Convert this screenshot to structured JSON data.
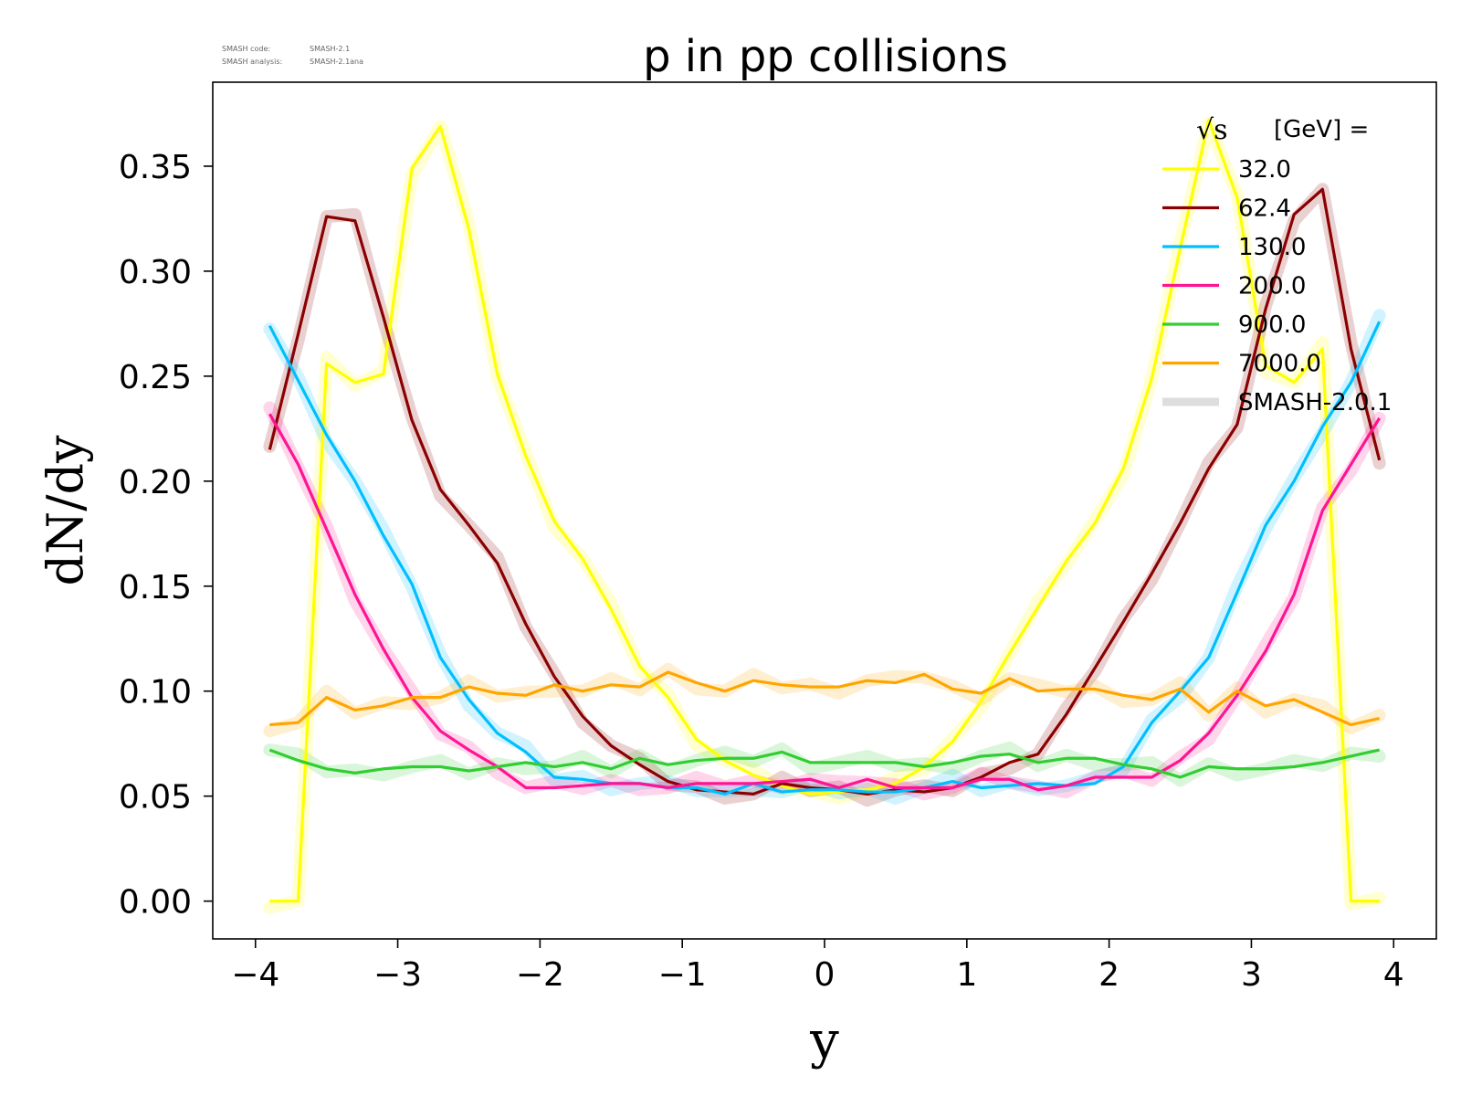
{
  "meta": {
    "code_label": "SMASH code:",
    "code_value": "SMASH-2.1",
    "analysis_label": "SMASH analysis:",
    "analysis_value": "SMASH-2.1ana"
  },
  "chart_data": {
    "type": "line",
    "title": "p in pp collisions",
    "xlabel": "y",
    "ylabel": "dN/dy",
    "xlim": [
      -4.3,
      4.3
    ],
    "ylim": [
      -0.018,
      0.39
    ],
    "xticks": [
      -4,
      -3,
      -2,
      -1,
      0,
      1,
      2,
      3,
      4
    ],
    "xtick_labels": [
      "−4",
      "−3",
      "−2",
      "−1",
      "0",
      "1",
      "2",
      "3",
      "4"
    ],
    "yticks": [
      0.0,
      0.05,
      0.1,
      0.15,
      0.2,
      0.25,
      0.3,
      0.35
    ],
    "ytick_labels": [
      "0.00",
      "0.05",
      "0.10",
      "0.15",
      "0.20",
      "0.25",
      "0.30",
      "0.35"
    ],
    "grid": false,
    "legend": {
      "placement": "top-right",
      "title_symbol": "√s",
      "title_text": "[GeV] =",
      "reference_label": "SMASH-2.0.1",
      "reference_color": "#dddddd"
    },
    "x": [
      -3.9,
      -3.7,
      -3.5,
      -3.3,
      -3.1,
      -2.9,
      -2.7,
      -2.5,
      -2.3,
      -2.1,
      -1.9,
      -1.7,
      -1.5,
      -1.3,
      -1.1,
      -0.9,
      -0.7,
      -0.5,
      -0.3,
      -0.1,
      0.1,
      0.3,
      0.5,
      0.7,
      0.9,
      1.1,
      1.3,
      1.5,
      1.7,
      1.9,
      2.1,
      2.3,
      2.5,
      2.7,
      2.9,
      3.1,
      3.3,
      3.5,
      3.7,
      3.9
    ],
    "series": [
      {
        "name": "32.0",
        "color": "#ffff00",
        "values": [
          0.0,
          0.0,
          0.256,
          0.247,
          0.251,
          0.349,
          0.369,
          0.32,
          0.251,
          0.212,
          0.181,
          0.163,
          0.139,
          0.112,
          0.097,
          0.077,
          0.067,
          0.06,
          0.055,
          0.051,
          0.052,
          0.053,
          0.056,
          0.064,
          0.076,
          0.095,
          0.118,
          0.14,
          0.162,
          0.18,
          0.206,
          0.249,
          0.311,
          0.372,
          0.335,
          0.255,
          0.247,
          0.263,
          0.0,
          0.0
        ]
      },
      {
        "name": "62.4",
        "color": "#8b0000",
        "values": [
          0.215,
          0.27,
          0.326,
          0.324,
          0.278,
          0.229,
          0.196,
          0.179,
          0.161,
          0.132,
          0.107,
          0.088,
          0.074,
          0.065,
          0.057,
          0.053,
          0.052,
          0.051,
          0.056,
          0.054,
          0.053,
          0.051,
          0.053,
          0.052,
          0.054,
          0.059,
          0.066,
          0.07,
          0.089,
          0.111,
          0.133,
          0.156,
          0.18,
          0.206,
          0.227,
          0.282,
          0.327,
          0.339,
          0.263,
          0.21
        ]
      },
      {
        "name": "130.0",
        "color": "#00bfff",
        "values": [
          0.274,
          0.248,
          0.222,
          0.2,
          0.174,
          0.151,
          0.116,
          0.096,
          0.08,
          0.071,
          0.059,
          0.058,
          0.056,
          0.056,
          0.054,
          0.054,
          0.051,
          0.056,
          0.052,
          0.053,
          0.053,
          0.052,
          0.052,
          0.054,
          0.057,
          0.054,
          0.055,
          0.056,
          0.055,
          0.056,
          0.064,
          0.085,
          0.1,
          0.116,
          0.147,
          0.179,
          0.2,
          0.226,
          0.247,
          0.276
        ]
      },
      {
        "name": "200.0",
        "color": "#ff1493",
        "values": [
          0.232,
          0.208,
          0.177,
          0.146,
          0.12,
          0.097,
          0.081,
          0.072,
          0.064,
          0.054,
          0.054,
          0.055,
          0.056,
          0.056,
          0.054,
          0.056,
          0.056,
          0.056,
          0.057,
          0.058,
          0.054,
          0.058,
          0.054,
          0.054,
          0.054,
          0.058,
          0.058,
          0.053,
          0.055,
          0.059,
          0.059,
          0.059,
          0.067,
          0.08,
          0.098,
          0.119,
          0.146,
          0.186,
          0.208,
          0.23
        ]
      },
      {
        "name": "900.0",
        "color": "#32cd32",
        "values": [
          0.072,
          0.067,
          0.063,
          0.061,
          0.063,
          0.064,
          0.064,
          0.062,
          0.064,
          0.066,
          0.064,
          0.066,
          0.063,
          0.068,
          0.065,
          0.067,
          0.068,
          0.068,
          0.071,
          0.066,
          0.066,
          0.066,
          0.066,
          0.064,
          0.066,
          0.069,
          0.07,
          0.066,
          0.068,
          0.068,
          0.065,
          0.063,
          0.059,
          0.064,
          0.063,
          0.063,
          0.064,
          0.066,
          0.069,
          0.072
        ]
      },
      {
        "name": "7000.0",
        "color": "#ffa500",
        "values": [
          0.084,
          0.085,
          0.097,
          0.091,
          0.093,
          0.097,
          0.097,
          0.102,
          0.099,
          0.098,
          0.103,
          0.1,
          0.103,
          0.102,
          0.109,
          0.104,
          0.1,
          0.105,
          0.103,
          0.102,
          0.102,
          0.105,
          0.104,
          0.108,
          0.101,
          0.099,
          0.106,
          0.1,
          0.101,
          0.101,
          0.098,
          0.096,
          0.101,
          0.09,
          0.1,
          0.093,
          0.096,
          0.09,
          0.084,
          0.087
        ]
      }
    ]
  }
}
